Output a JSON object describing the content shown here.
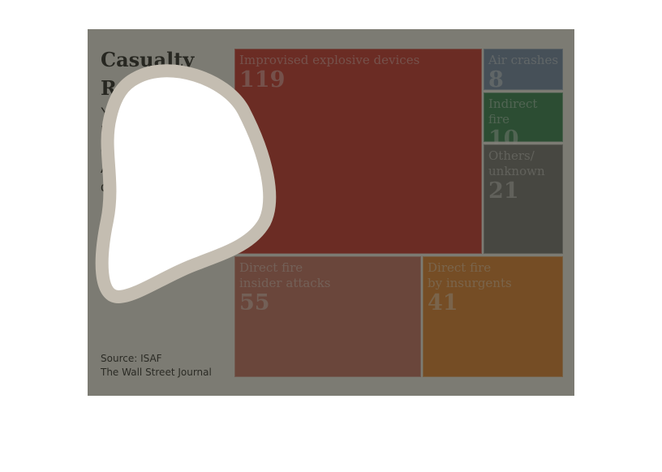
{
  "header": {
    "title": "Casualty Report",
    "subtitle": "Year-to-date battlefield deaths of coalition troops in Afghanistan, by cause"
  },
  "footer": {
    "source": "Source: ISAF",
    "publisher": "The Wall Street Journal"
  },
  "colors": {
    "ied": "#c8221e",
    "air": "#6882a6",
    "indirect": "#227a46",
    "others": "#6a6a6a",
    "insider": "#c4665a",
    "insurgents": "#e17a20",
    "highlight": "#ffffff",
    "overlay": "#32322a"
  },
  "chart_data": {
    "type": "treemap",
    "title": "Casualty Report",
    "subtitle": "Year-to-date battlefield deaths of coalition troops in Afghanistan, by cause",
    "items": [
      {
        "label": "Improvised explosive devices",
        "value": 119
      },
      {
        "label": "Air crashes",
        "value": 8
      },
      {
        "label": "Indirect fire",
        "value": 10
      },
      {
        "label": "Others/\nunknown",
        "value": 21
      },
      {
        "label": "Direct fire\ninsider attacks",
        "value": 55
      },
      {
        "label": "Direct fire\nby insurgents",
        "value": 41
      }
    ]
  }
}
